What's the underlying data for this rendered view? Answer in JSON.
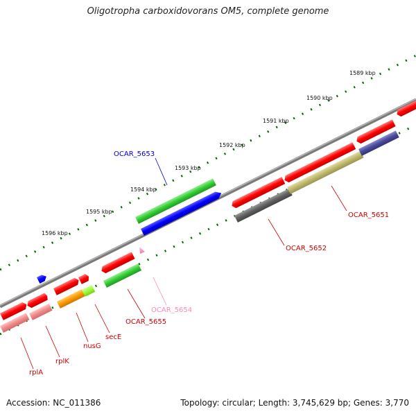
{
  "title": "Oligotropha carboxidovorans OM5, complete genome",
  "accession": "Accession: NC_011386",
  "summary": "Topology: circular; Length: 3,745,629 bp; Genes: 3,770",
  "colors": {
    "backbone": "#8c8c8c",
    "red": "#ff0000",
    "pink": "#f08a8a",
    "green": "#33cc33",
    "lime": "#99ff33",
    "blue": "#0000ff",
    "orange": "#ff9900",
    "olive": "#bdb76b",
    "dark_grey": "#606060",
    "navy": "#4a4a99",
    "light_pink": "#ff99cc",
    "tick": "#006600"
  },
  "kbp_labels": [
    "1589 kbp",
    "1590 kbp",
    "1591 kbp",
    "1592 kbp",
    "1593 kbp",
    "1594 kbp",
    "1595 kbp",
    "1596 kbp"
  ],
  "gene_labels": [
    {
      "id": "OCAR_5653",
      "text": "OCAR_5653",
      "color": "#0000cc"
    },
    {
      "id": "OCAR_5651",
      "text": "OCAR_5651",
      "color": "#cc0000"
    },
    {
      "id": "OCAR_5652",
      "text": "OCAR_5652",
      "color": "#cc0000"
    },
    {
      "id": "OCAR_5654",
      "text": "OCAR_5654",
      "color": "#ff88bb"
    },
    {
      "id": "OCAR_5655",
      "text": "OCAR_5655",
      "color": "#cc0000"
    },
    {
      "id": "secE",
      "text": "secE",
      "color": "#cc0000"
    },
    {
      "id": "nusG",
      "text": "nusG",
      "color": "#cc0000"
    },
    {
      "id": "rplK",
      "text": "rplK",
      "color": "#cc0000"
    },
    {
      "id": "rplA",
      "text": "rplA",
      "color": "#cc0000"
    }
  ]
}
